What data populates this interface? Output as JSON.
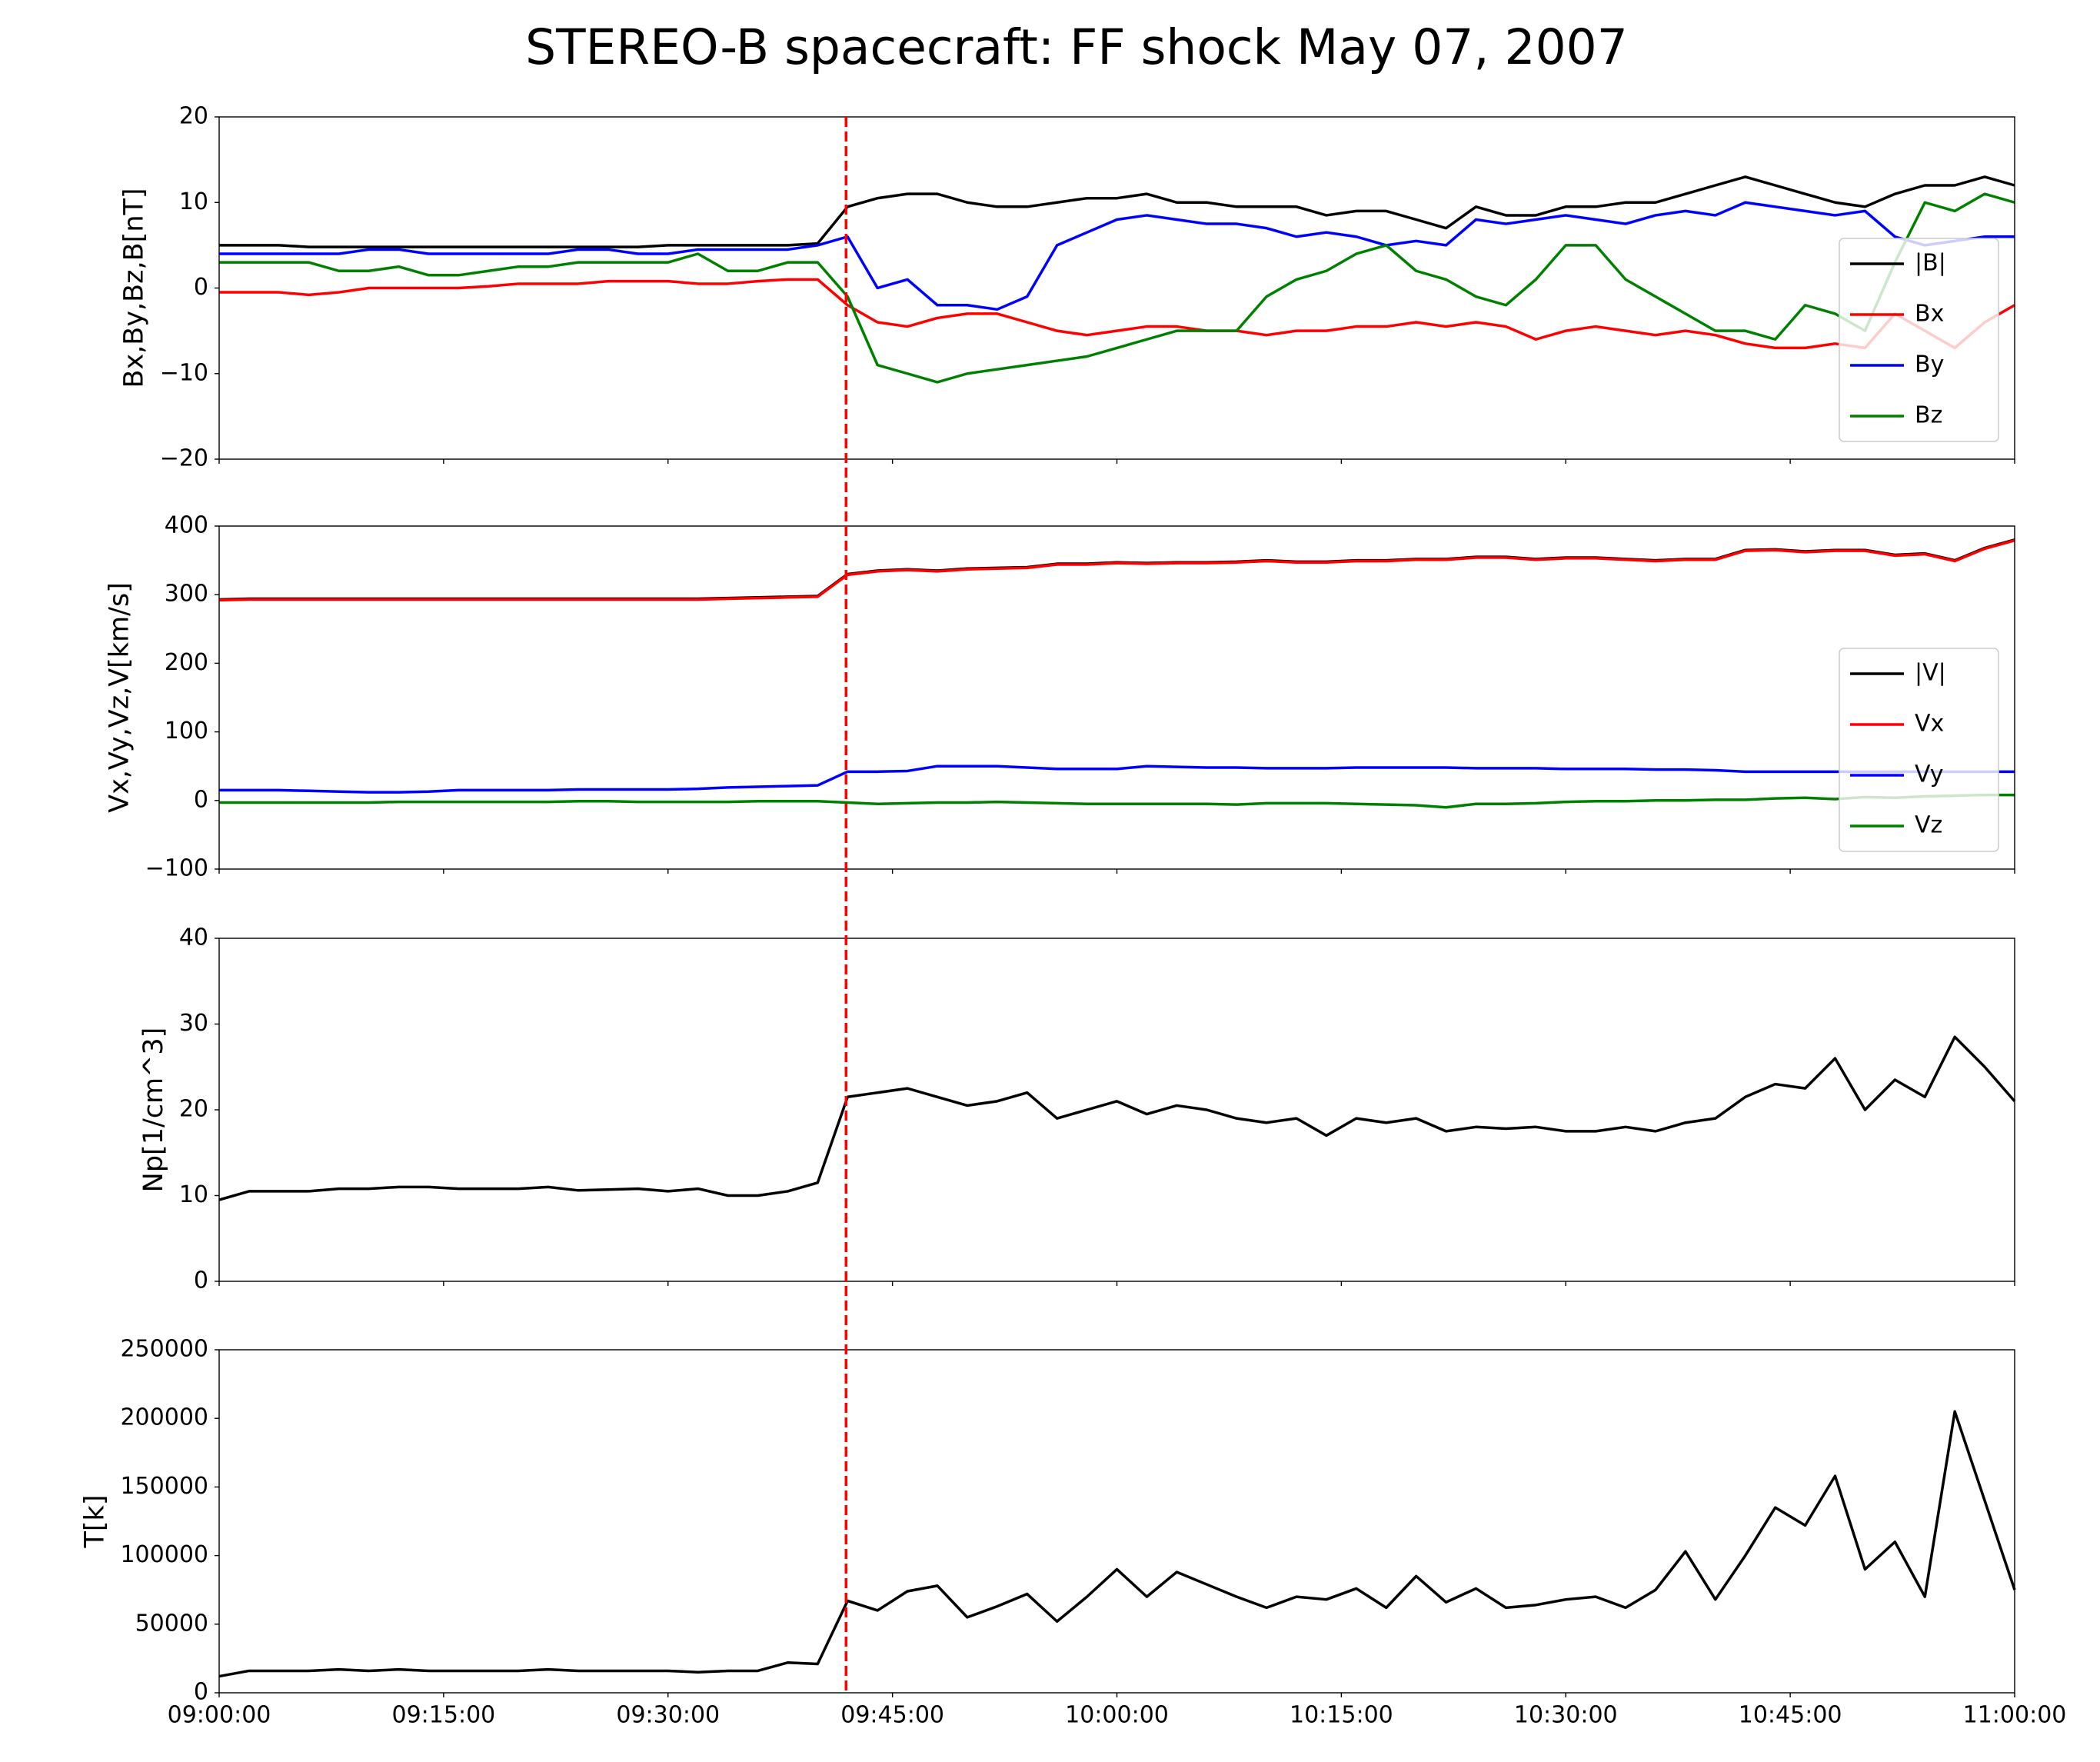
{
  "title": "STEREO-B spacecraft: FF shock May 07, 2007",
  "vline": {
    "x": "09:41:54",
    "color": "#ff0000",
    "style": "dashed"
  },
  "chart_data": [
    {
      "type": "line",
      "ylabel": "Bx,By,Bz,B[nT]",
      "legend": "lower right",
      "xlim": [
        "09:00:00",
        "11:00:00"
      ],
      "ylim": [
        -20,
        20
      ],
      "yticks": [
        {
          "value": -20,
          "label": "−20"
        },
        {
          "value": -10,
          "label": "−10"
        },
        0,
        10,
        20
      ],
      "x": [
        "09:00:00",
        "09:02:00",
        "09:04:00",
        "09:06:00",
        "09:08:00",
        "09:10:00",
        "09:12:00",
        "09:14:00",
        "09:16:00",
        "09:18:00",
        "09:20:00",
        "09:22:00",
        "09:24:00",
        "09:26:00",
        "09:28:00",
        "09:30:00",
        "09:32:00",
        "09:34:00",
        "09:36:00",
        "09:38:00",
        "09:40:00",
        "09:42:00",
        "09:44:00",
        "09:46:00",
        "09:48:00",
        "09:50:00",
        "09:52:00",
        "09:54:00",
        "09:56:00",
        "09:58:00",
        "10:00:00",
        "10:02:00",
        "10:04:00",
        "10:06:00",
        "10:08:00",
        "10:10:00",
        "10:12:00",
        "10:14:00",
        "10:16:00",
        "10:18:00",
        "10:20:00",
        "10:22:00",
        "10:24:00",
        "10:26:00",
        "10:28:00",
        "10:30:00",
        "10:32:00",
        "10:34:00",
        "10:36:00",
        "10:38:00",
        "10:40:00",
        "10:42:00",
        "10:44:00",
        "10:46:00",
        "10:48:00",
        "10:50:00",
        "10:52:00",
        "10:54:00",
        "10:56:00",
        "10:58:00",
        "11:00:00"
      ],
      "series": [
        {
          "name": "|B|",
          "color": "#000000",
          "values": [
            5,
            5,
            5,
            4.8,
            4.8,
            4.8,
            4.8,
            4.8,
            4.8,
            4.8,
            4.8,
            4.8,
            4.8,
            4.8,
            4.8,
            5,
            5,
            5,
            5,
            5,
            5.2,
            9.5,
            10.5,
            11,
            11,
            10,
            9.5,
            9.5,
            10,
            10.5,
            10.5,
            11,
            10,
            10,
            9.5,
            9.5,
            9.5,
            8.5,
            9,
            9,
            8,
            7,
            9.5,
            8.5,
            8.5,
            9.5,
            9.5,
            10,
            10,
            11,
            12,
            13,
            12,
            11,
            10,
            9.5,
            11,
            12,
            12,
            13,
            12
          ]
        },
        {
          "name": "Bx",
          "color": "#ff0000",
          "values": [
            -0.5,
            -0.5,
            -0.5,
            -0.8,
            -0.5,
            0,
            0,
            0,
            0,
            0.2,
            0.5,
            0.5,
            0.5,
            0.8,
            0.8,
            0.8,
            0.5,
            0.5,
            0.8,
            1,
            1,
            -2,
            -4,
            -4.5,
            -3.5,
            -3,
            -3,
            -4,
            -5,
            -5.5,
            -5,
            -4.5,
            -4.5,
            -5,
            -5,
            -5.5,
            -5,
            -5,
            -4.5,
            -4.5,
            -4,
            -4.5,
            -4,
            -4.5,
            -6,
            -5,
            -4.5,
            -5,
            -5.5,
            -5,
            -5.5,
            -6.5,
            -7,
            -7,
            -6.5,
            -7,
            -3,
            -5,
            -7,
            -4,
            -2
          ]
        },
        {
          "name": "By",
          "color": "#0000ff",
          "values": [
            4,
            4,
            4,
            4,
            4,
            4.5,
            4.5,
            4,
            4,
            4,
            4,
            4,
            4.5,
            4.5,
            4,
            4,
            4.5,
            4.5,
            4.5,
            4.5,
            5,
            6,
            0,
            1,
            -2,
            -2,
            -2.5,
            -1,
            5,
            6.5,
            8,
            8.5,
            8,
            7.5,
            7.5,
            7,
            6,
            6.5,
            6,
            5,
            5.5,
            5,
            8,
            7.5,
            8,
            8.5,
            8,
            7.5,
            8.5,
            9,
            8.5,
            10,
            9.5,
            9,
            8.5,
            9,
            6,
            5,
            5.5,
            6,
            6
          ]
        },
        {
          "name": "Bz",
          "color": "#008000",
          "values": [
            3,
            3,
            3,
            3,
            2,
            2,
            2.5,
            1.5,
            1.5,
            2,
            2.5,
            2.5,
            3,
            3,
            3,
            3,
            4,
            2,
            2,
            3,
            3,
            -1,
            -9,
            -10,
            -11,
            -10,
            -9.5,
            -9,
            -8.5,
            -8,
            -7,
            -6,
            -5,
            -5,
            -5,
            -1,
            1,
            2,
            4,
            5,
            2,
            1,
            -1,
            -2,
            1,
            5,
            5,
            1,
            -1,
            -3,
            -5,
            -5,
            -6,
            -2,
            -3,
            -5,
            3,
            10,
            9,
            11,
            10
          ]
        }
      ]
    },
    {
      "type": "line",
      "ylabel": "Vx,Vy,Vz,V[km/s]",
      "legend": "lower right",
      "xlim": [
        "09:00:00",
        "11:00:00"
      ],
      "ylim": [
        -100,
        400
      ],
      "yticks": [
        {
          "value": -100,
          "label": "−100"
        },
        0,
        100,
        200,
        300,
        400
      ],
      "x": [
        "09:00:00",
        "09:02:00",
        "09:04:00",
        "09:06:00",
        "09:08:00",
        "09:10:00",
        "09:12:00",
        "09:14:00",
        "09:16:00",
        "09:18:00",
        "09:20:00",
        "09:22:00",
        "09:24:00",
        "09:26:00",
        "09:28:00",
        "09:30:00",
        "09:32:00",
        "09:34:00",
        "09:36:00",
        "09:38:00",
        "09:40:00",
        "09:42:00",
        "09:44:00",
        "09:46:00",
        "09:48:00",
        "09:50:00",
        "09:52:00",
        "09:54:00",
        "09:56:00",
        "09:58:00",
        "10:00:00",
        "10:02:00",
        "10:04:00",
        "10:06:00",
        "10:08:00",
        "10:10:00",
        "10:12:00",
        "10:14:00",
        "10:16:00",
        "10:18:00",
        "10:20:00",
        "10:22:00",
        "10:24:00",
        "10:26:00",
        "10:28:00",
        "10:30:00",
        "10:32:00",
        "10:34:00",
        "10:36:00",
        "10:38:00",
        "10:40:00",
        "10:42:00",
        "10:44:00",
        "10:46:00",
        "10:48:00",
        "10:50:00",
        "10:52:00",
        "10:54:00",
        "10:56:00",
        "10:58:00",
        "11:00:00"
      ],
      "series": [
        {
          "name": "|V|",
          "color": "#000000",
          "values": [
            293,
            294,
            294,
            294,
            294,
            294,
            294,
            294,
            294,
            294,
            294,
            294,
            294,
            294,
            294,
            294,
            294,
            295,
            296,
            297,
            298,
            330,
            335,
            337,
            335,
            338,
            339,
            340,
            345,
            345,
            347,
            346,
            347,
            347,
            348,
            350,
            348,
            348,
            350,
            350,
            352,
            352,
            355,
            355,
            352,
            354,
            354,
            352,
            350,
            352,
            352,
            365,
            366,
            363,
            365,
            365,
            358,
            360,
            350,
            368,
            380
          ]
        },
        {
          "name": "Vx",
          "color": "#ff0000",
          "values": [
            292,
            293,
            293,
            293,
            293,
            293,
            293,
            293,
            293,
            293,
            293,
            293,
            293,
            293,
            293,
            293,
            293,
            294,
            295,
            296,
            297,
            329,
            334,
            336,
            334,
            337,
            338,
            339,
            344,
            344,
            346,
            345,
            346,
            346,
            347,
            349,
            347,
            347,
            349,
            349,
            351,
            351,
            354,
            354,
            351,
            353,
            353,
            351,
            349,
            351,
            351,
            364,
            365,
            362,
            364,
            364,
            357,
            359,
            349,
            367,
            379
          ]
        },
        {
          "name": "Vy",
          "color": "#0000ff",
          "values": [
            15,
            15,
            15,
            14,
            13,
            12,
            12,
            13,
            15,
            15,
            15,
            15,
            16,
            16,
            16,
            16,
            17,
            19,
            20,
            21,
            22,
            42,
            42,
            43,
            50,
            50,
            50,
            48,
            46,
            46,
            46,
            50,
            49,
            48,
            48,
            47,
            47,
            47,
            48,
            48,
            48,
            48,
            47,
            47,
            47,
            46,
            46,
            46,
            45,
            45,
            44,
            42,
            42,
            42,
            42,
            42,
            42,
            42,
            42,
            42,
            42
          ]
        },
        {
          "name": "Vz",
          "color": "#008000",
          "values": [
            -3,
            -3,
            -3,
            -3,
            -3,
            -3,
            -2,
            -2,
            -2,
            -2,
            -2,
            -2,
            -1,
            -1,
            -2,
            -2,
            -2,
            -2,
            -1,
            -1,
            -1,
            -3,
            -5,
            -4,
            -3,
            -3,
            -2,
            -3,
            -4,
            -5,
            -5,
            -5,
            -5,
            -5,
            -6,
            -4,
            -4,
            -4,
            -5,
            -6,
            -7,
            -10,
            -5,
            -5,
            -4,
            -2,
            -1,
            -1,
            0,
            0,
            1,
            1,
            3,
            4,
            2,
            5,
            4,
            6,
            7,
            8,
            8
          ]
        }
      ]
    },
    {
      "type": "line",
      "ylabel": "Np[1/cm^3]",
      "xlim": [
        "09:00:00",
        "11:00:00"
      ],
      "ylim": [
        0,
        40
      ],
      "yticks": [
        0,
        10,
        20,
        30,
        40
      ],
      "x": [
        "09:00:00",
        "09:02:00",
        "09:04:00",
        "09:06:00",
        "09:08:00",
        "09:10:00",
        "09:12:00",
        "09:14:00",
        "09:16:00",
        "09:18:00",
        "09:20:00",
        "09:22:00",
        "09:24:00",
        "09:26:00",
        "09:28:00",
        "09:30:00",
        "09:32:00",
        "09:34:00",
        "09:36:00",
        "09:38:00",
        "09:40:00",
        "09:42:00",
        "09:44:00",
        "09:46:00",
        "09:48:00",
        "09:50:00",
        "09:52:00",
        "09:54:00",
        "09:56:00",
        "09:58:00",
        "10:00:00",
        "10:02:00",
        "10:04:00",
        "10:06:00",
        "10:08:00",
        "10:10:00",
        "10:12:00",
        "10:14:00",
        "10:16:00",
        "10:18:00",
        "10:20:00",
        "10:22:00",
        "10:24:00",
        "10:26:00",
        "10:28:00",
        "10:30:00",
        "10:32:00",
        "10:34:00",
        "10:36:00",
        "10:38:00",
        "10:40:00",
        "10:42:00",
        "10:44:00",
        "10:46:00",
        "10:48:00",
        "10:50:00",
        "10:52:00",
        "10:54:00",
        "10:56:00",
        "10:58:00",
        "11:00:00"
      ],
      "series": [
        {
          "color": "#000000",
          "values": [
            9.5,
            10.5,
            10.5,
            10.5,
            10.8,
            10.8,
            11,
            11,
            10.8,
            10.8,
            10.8,
            11,
            10.6,
            10.7,
            10.8,
            10.5,
            10.8,
            10,
            10,
            10.5,
            11.5,
            21.5,
            22,
            22.5,
            21.5,
            20.5,
            21,
            22,
            19,
            20,
            21,
            19.5,
            20.5,
            20,
            19,
            18.5,
            19,
            17,
            19,
            18.5,
            19,
            17.5,
            18,
            17.8,
            18,
            17.5,
            17.5,
            18,
            17.5,
            18.5,
            19,
            21.5,
            23,
            22.5,
            26,
            20,
            23.5,
            21.5,
            28.5,
            25,
            21
          ]
        }
      ]
    },
    {
      "type": "line",
      "ylabel": "T[k]",
      "xlim": [
        "09:00:00",
        "11:00:00"
      ],
      "ylim": [
        0,
        250000
      ],
      "yticks": [
        0,
        50000,
        100000,
        150000,
        200000,
        250000
      ],
      "xticks": [
        "09:00:00",
        "09:15:00",
        "09:30:00",
        "09:45:00",
        "10:00:00",
        "10:15:00",
        "10:30:00",
        "10:45:00",
        "11:00:00"
      ],
      "x": [
        "09:00:00",
        "09:02:00",
        "09:04:00",
        "09:06:00",
        "09:08:00",
        "09:10:00",
        "09:12:00",
        "09:14:00",
        "09:16:00",
        "09:18:00",
        "09:20:00",
        "09:22:00",
        "09:24:00",
        "09:26:00",
        "09:28:00",
        "09:30:00",
        "09:32:00",
        "09:34:00",
        "09:36:00",
        "09:38:00",
        "09:40:00",
        "09:42:00",
        "09:44:00",
        "09:46:00",
        "09:48:00",
        "09:50:00",
        "09:52:00",
        "09:54:00",
        "09:56:00",
        "09:58:00",
        "10:00:00",
        "10:02:00",
        "10:04:00",
        "10:06:00",
        "10:08:00",
        "10:10:00",
        "10:12:00",
        "10:14:00",
        "10:16:00",
        "10:18:00",
        "10:20:00",
        "10:22:00",
        "10:24:00",
        "10:26:00",
        "10:28:00",
        "10:30:00",
        "10:32:00",
        "10:34:00",
        "10:36:00",
        "10:38:00",
        "10:40:00",
        "10:42:00",
        "10:44:00",
        "10:46:00",
        "10:48:00",
        "10:50:00",
        "10:52:00",
        "10:54:00",
        "10:56:00",
        "10:58:00",
        "11:00:00"
      ],
      "series": [
        {
          "color": "#000000",
          "values": [
            12000,
            16000,
            16000,
            16000,
            17000,
            16000,
            17000,
            16000,
            16000,
            16000,
            16000,
            17000,
            16000,
            16000,
            16000,
            16000,
            15000,
            16000,
            16000,
            22000,
            21000,
            67000,
            60000,
            74000,
            78000,
            55000,
            63000,
            72000,
            52000,
            70000,
            90000,
            70000,
            88000,
            79000,
            70000,
            62000,
            70000,
            68000,
            76000,
            62000,
            85000,
            66000,
            76000,
            62000,
            64000,
            68000,
            70000,
            62000,
            75000,
            103000,
            68000,
            100000,
            135000,
            122000,
            158000,
            90000,
            110000,
            70000,
            205000,
            140000,
            75000
          ]
        }
      ]
    }
  ]
}
